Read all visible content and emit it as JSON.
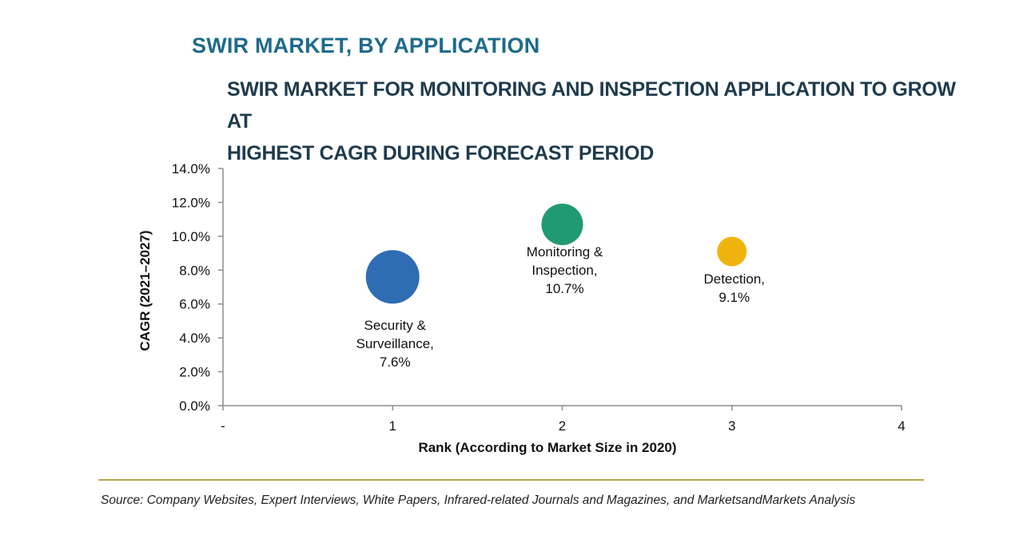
{
  "header": {
    "title": "SWIR MARKET, BY APPLICATION",
    "subtitle_line1": "SWIR MARKET FOR MONITORING AND INSPECTION APPLICATION TO GROW AT",
    "subtitle_line2": "HIGHEST CAGR DURING FORECAST PERIOD"
  },
  "footer": {
    "source": "Source: Company Websites, Expert Interviews, White Papers, Infrared-related Journals and Magazines, and MarketsandMarkets Analysis"
  },
  "chart_data": {
    "type": "scatter",
    "subtype": "bubble",
    "title": "SWIR MARKET, BY APPLICATION",
    "xlabel": "Rank (According to Market Size in 2020)",
    "ylabel": "CAGR (2021–2027)",
    "xlim": [
      0,
      4
    ],
    "ylim": [
      0,
      14
    ],
    "x_ticks": [
      "-",
      "1",
      "2",
      "3",
      "4"
    ],
    "y_ticks": [
      "0.0%",
      "2.0%",
      "4.0%",
      "6.0%",
      "8.0%",
      "10.0%",
      "12.0%",
      "14.0%"
    ],
    "y_tick_values": [
      0,
      2,
      4,
      6,
      8,
      10,
      12,
      14
    ],
    "grid": false,
    "series": [
      {
        "name": "Security & Surveillance",
        "x": 1,
        "y": 7.6,
        "size": 3,
        "color": "#2e6db4",
        "label_lines": [
          "Security &",
          "Surveillance,",
          "7.6%"
        ]
      },
      {
        "name": "Monitoring & Inspection",
        "x": 2,
        "y": 10.7,
        "size": 2,
        "color": "#219a74",
        "label_lines": [
          "Monitoring &",
          "Inspection,",
          "10.7%"
        ]
      },
      {
        "name": "Detection",
        "x": 3,
        "y": 9.1,
        "size": 1,
        "color": "#f0b40e",
        "label_lines": [
          "Detection,",
          "9.1%"
        ]
      }
    ]
  }
}
